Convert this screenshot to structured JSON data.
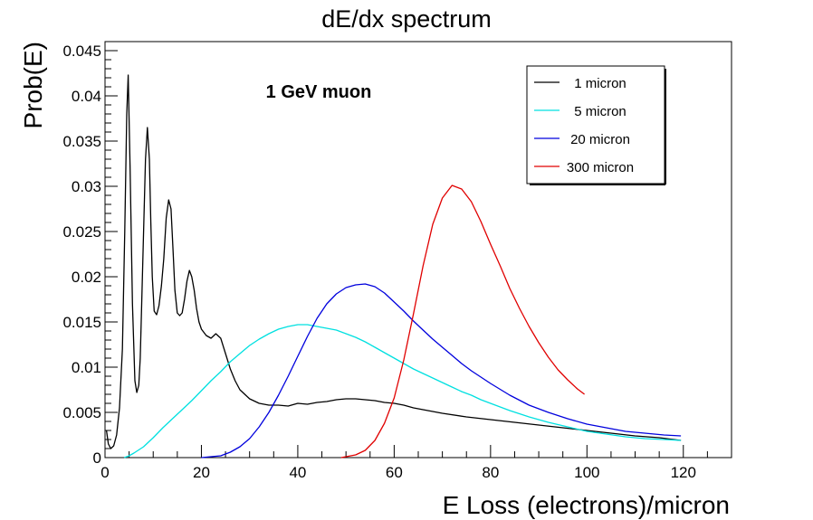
{
  "chart_data": {
    "type": "line",
    "title": "dE/dx spectrum",
    "xlabel": "E Loss (electrons)/micron",
    "ylabel": "Prob(E)",
    "annotation": "1 GeV muon",
    "xlim": [
      0,
      130
    ],
    "ylim": [
      0,
      0.046
    ],
    "xticks": [
      0,
      20,
      40,
      60,
      80,
      100,
      120
    ],
    "yticks": [
      0,
      0.005,
      0.01,
      0.015,
      0.02,
      0.025,
      0.03,
      0.035,
      0.04,
      0.045
    ],
    "ytick_labels": [
      "0",
      "0.005",
      "0.01",
      "0.015",
      "0.02",
      "0.025",
      "0.03",
      "0.035",
      "0.04",
      "0.045"
    ],
    "grid": false,
    "legend_position": "top-right",
    "series": [
      {
        "name": "1 micron",
        "color": "#000000",
        "x": [
          0.3,
          0.7,
          1.2,
          1.8,
          2.4,
          3.0,
          3.6,
          4.1,
          4.5,
          4.8,
          5.2,
          5.7,
          6.2,
          6.6,
          7.0,
          7.3,
          7.6,
          8.0,
          8.4,
          8.8,
          9.2,
          9.5,
          9.8,
          10.2,
          10.7,
          11.2,
          11.7,
          12.2,
          12.7,
          13.2,
          13.7,
          14.1,
          14.5,
          15.0,
          15.5,
          16.0,
          16.5,
          17.0,
          17.5,
          18.0,
          18.5,
          19.0,
          19.5,
          20.0,
          21.0,
          22.0,
          23.0,
          24.0,
          25.0,
          26.0,
          27.0,
          28.0,
          30.0,
          32.0,
          34.0,
          36.0,
          38.0,
          40.0,
          42.0,
          44.0,
          46.0,
          48.0,
          50.0,
          52.0,
          54.0,
          56.0,
          58.0,
          60.0,
          62.0,
          64.0,
          66.0,
          70.0,
          75.0,
          80.0,
          85.0,
          90.0,
          95.0,
          100.0,
          105.0,
          110.0,
          115.0,
          119.5
        ],
        "values": [
          0.003,
          0.0015,
          0.001,
          0.0013,
          0.0025,
          0.0055,
          0.012,
          0.025,
          0.038,
          0.0423,
          0.032,
          0.017,
          0.0085,
          0.0072,
          0.008,
          0.011,
          0.017,
          0.025,
          0.033,
          0.0365,
          0.033,
          0.026,
          0.02,
          0.0162,
          0.0158,
          0.0168,
          0.019,
          0.022,
          0.0265,
          0.0285,
          0.0275,
          0.023,
          0.0185,
          0.016,
          0.0157,
          0.016,
          0.0175,
          0.0195,
          0.0207,
          0.02,
          0.0185,
          0.0165,
          0.015,
          0.0142,
          0.0135,
          0.0132,
          0.0137,
          0.0132,
          0.0115,
          0.0098,
          0.0085,
          0.0075,
          0.0065,
          0.006,
          0.0058,
          0.0058,
          0.0057,
          0.006,
          0.0059,
          0.0061,
          0.0062,
          0.0064,
          0.0065,
          0.0065,
          0.0064,
          0.0063,
          0.0061,
          0.006,
          0.0058,
          0.0055,
          0.0053,
          0.0049,
          0.0045,
          0.0042,
          0.0039,
          0.0036,
          0.0033,
          0.003,
          0.0027,
          0.0024,
          0.0022,
          0.0019
        ]
      },
      {
        "name": "5 micron",
        "color": "#00e0e0",
        "x": [
          4.0,
          5.0,
          6.0,
          8.0,
          10.0,
          12.0,
          14.0,
          16.0,
          18.0,
          20.0,
          22.0,
          24.0,
          26.0,
          28.0,
          30.0,
          32.0,
          34.0,
          36.0,
          38.0,
          40.0,
          42.0,
          44.0,
          46.0,
          48.0,
          50.0,
          52.0,
          54.0,
          56.0,
          58.0,
          60.0,
          62.0,
          64.0,
          66.0,
          68.0,
          70.0,
          72.0,
          74.0,
          76.0,
          78.0,
          80.0,
          84.0,
          88.0,
          92.0,
          96.0,
          100.0,
          104.0,
          108.0,
          112.0,
          116.0,
          119.5
        ],
        "values": [
          0.0,
          0.0002,
          0.0005,
          0.0012,
          0.0022,
          0.0033,
          0.0043,
          0.0053,
          0.0063,
          0.0074,
          0.0085,
          0.0095,
          0.0106,
          0.0115,
          0.0124,
          0.0131,
          0.0137,
          0.0142,
          0.0145,
          0.0147,
          0.0147,
          0.0145,
          0.0143,
          0.0141,
          0.0137,
          0.0133,
          0.0128,
          0.0122,
          0.0116,
          0.011,
          0.0104,
          0.0098,
          0.0093,
          0.0088,
          0.0083,
          0.0078,
          0.0073,
          0.0069,
          0.0064,
          0.006,
          0.0052,
          0.0045,
          0.0039,
          0.0034,
          0.0029,
          0.0026,
          0.0023,
          0.0021,
          0.002,
          0.0019
        ]
      },
      {
        "name": "20 micron",
        "color": "#0000dd",
        "x": [
          20.0,
          22.0,
          24.0,
          26.0,
          28.0,
          30.0,
          32.0,
          34.0,
          36.0,
          38.0,
          40.0,
          42.0,
          44.0,
          46.0,
          48.0,
          50.0,
          52.0,
          54.0,
          56.0,
          58.0,
          60.0,
          62.0,
          64.0,
          66.0,
          68.0,
          70.0,
          72.0,
          74.0,
          76.0,
          78.0,
          80.0,
          84.0,
          88.0,
          92.0,
          96.0,
          100.0,
          104.0,
          108.0,
          112.0,
          116.0,
          119.5
        ],
        "values": [
          0.0,
          0.0001,
          0.0002,
          0.0006,
          0.0012,
          0.0021,
          0.0034,
          0.005,
          0.0069,
          0.009,
          0.0112,
          0.0134,
          0.0154,
          0.017,
          0.0181,
          0.0188,
          0.0191,
          0.0192,
          0.0189,
          0.0182,
          0.0172,
          0.0162,
          0.0151,
          0.0141,
          0.0131,
          0.0122,
          0.0113,
          0.0104,
          0.0096,
          0.0089,
          0.0082,
          0.0069,
          0.0058,
          0.005,
          0.0043,
          0.0037,
          0.0033,
          0.0029,
          0.0027,
          0.0025,
          0.0024
        ]
      },
      {
        "name": "300 micron",
        "color": "#e00000",
        "x": [
          49.0,
          50.0,
          52.0,
          54.0,
          56.0,
          58.0,
          60.0,
          62.0,
          64.0,
          66.0,
          68.0,
          70.0,
          72.0,
          74.0,
          76.0,
          78.0,
          80.0,
          82.0,
          84.0,
          86.0,
          88.0,
          90.0,
          92.0,
          94.0,
          96.0,
          98.0,
          99.5
        ],
        "values": [
          0.0,
          0.0001,
          0.0003,
          0.0008,
          0.0019,
          0.0038,
          0.0066,
          0.0108,
          0.0159,
          0.0212,
          0.0258,
          0.0287,
          0.0301,
          0.0297,
          0.0283,
          0.0261,
          0.0236,
          0.0212,
          0.0187,
          0.0165,
          0.0145,
          0.0127,
          0.0111,
          0.0097,
          0.0086,
          0.0076,
          0.007
        ]
      }
    ]
  }
}
